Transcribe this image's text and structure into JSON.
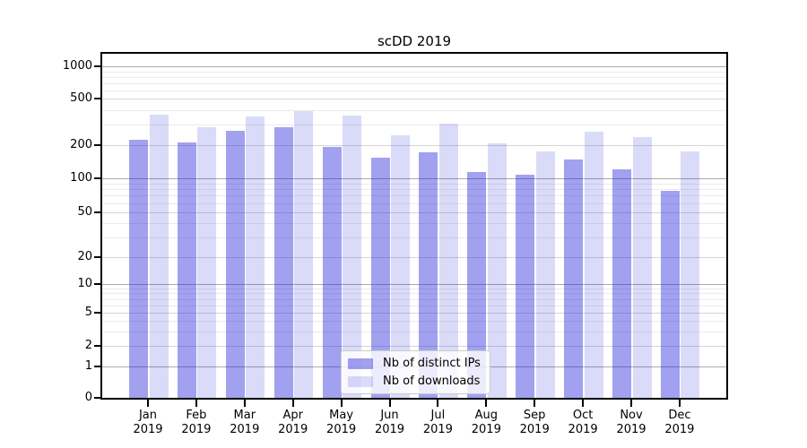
{
  "title": "scDD 2019",
  "chart_data": {
    "type": "bar",
    "title": "scDD 2019",
    "yscale": "symlog",
    "grid": true,
    "categories": [
      "Jan 2019",
      "Feb 2019",
      "Mar 2019",
      "Apr 2019",
      "May 2019",
      "Jun 2019",
      "Jul 2019",
      "Aug 2019",
      "Sep 2019",
      "Oct 2019",
      "Nov 2019",
      "Dec 2019"
    ],
    "series": [
      {
        "name": "Nb of distinct IPs",
        "color": "rgba(30,30,220,0.42)",
        "values": [
          220,
          210,
          265,
          285,
          190,
          155,
          172,
          115,
          108,
          148,
          120,
          78
        ]
      },
      {
        "name": "Nb of downloads",
        "color": "rgba(30,30,220,0.165)",
        "values": [
          365,
          285,
          350,
          395,
          360,
          240,
          305,
          205,
          175,
          260,
          235,
          175
        ]
      }
    ],
    "y_tick_values": [
      1000,
      500,
      200,
      100,
      50,
      20,
      10,
      5,
      2,
      1,
      0
    ],
    "y_tick_labels": [
      "1000",
      "500",
      "200",
      "100",
      "50",
      "20",
      "10",
      "5",
      "2",
      "1",
      "0"
    ],
    "y_minor_tick_values": [
      3,
      4,
      6,
      7,
      8,
      9,
      30,
      40,
      60,
      70,
      80,
      90,
      300,
      400,
      600,
      700,
      800,
      900
    ],
    "ylim": [
      0,
      1300
    ],
    "legend": {
      "position": "lower-center",
      "entries": [
        "Nb of distinct IPs",
        "Nb of downloads"
      ]
    }
  }
}
